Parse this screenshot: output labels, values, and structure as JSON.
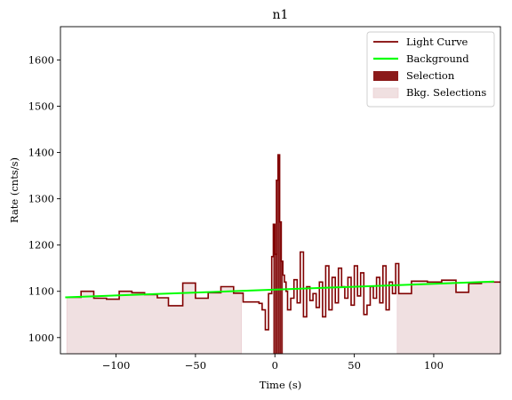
{
  "colors": {
    "light_curve": "#800000",
    "background": "#00ff00",
    "selection": "#8b1a1a",
    "bkg_selection": "#f0e0e1",
    "bkg_selection_edge": "#e8c8cc"
  },
  "chart_data": {
    "type": "line",
    "title": "n1",
    "xlabel": "Time (s)",
    "ylabel": "Rate (cnts/s)",
    "xlim": [
      -135,
      142
    ],
    "ylim": [
      965,
      1672
    ],
    "xticks": [
      -100,
      -50,
      0,
      50,
      100
    ],
    "yticks": [
      1000,
      1100,
      1200,
      1300,
      1400,
      1500,
      1600
    ],
    "xtick_labels": [
      "−100",
      "−50",
      "0",
      "50",
      "100"
    ],
    "ytick_labels": [
      "1000",
      "1100",
      "1200",
      "1300",
      "1400",
      "1500",
      "1600"
    ],
    "grid": false,
    "legend_position": "top-right",
    "legend": [
      "Light Curve",
      "Background",
      "Selection",
      "Bkg. Selections"
    ],
    "series": [
      {
        "name": "Light Curve",
        "style": "step",
        "x": [
          -131,
          -122,
          -114,
          -106,
          -98,
          -90,
          -82,
          -74,
          -67,
          -58,
          -50,
          -42,
          -34,
          -26,
          -20,
          -10,
          -8,
          -6,
          -4,
          -2,
          -1,
          0,
          1,
          2,
          3,
          4,
          5,
          6,
          7,
          8,
          10,
          12,
          14,
          16,
          18,
          20,
          22,
          24,
          26,
          28,
          30,
          32,
          34,
          36,
          38,
          40,
          42,
          44,
          46,
          48,
          50,
          52,
          54,
          56,
          58,
          60,
          62,
          64,
          66,
          68,
          70,
          72,
          74,
          76,
          78,
          86,
          96,
          105,
          114,
          122,
          130,
          142
        ],
        "y": [
          1087,
          1100,
          1085,
          1083,
          1100,
          1097,
          1093,
          1086,
          1069,
          1118,
          1085,
          1097,
          1110,
          1096,
          1077,
          1074,
          1060,
          1017,
          1095,
          1175,
          1245,
          1180,
          1340,
          1395,
          1250,
          1165,
          1135,
          1120,
          1100,
          1060,
          1085,
          1125,
          1075,
          1185,
          1045,
          1110,
          1080,
          1095,
          1065,
          1120,
          1045,
          1155,
          1060,
          1130,
          1075,
          1150,
          1110,
          1085,
          1130,
          1070,
          1155,
          1090,
          1140,
          1050,
          1070,
          1110,
          1085,
          1130,
          1075,
          1155,
          1060,
          1120,
          1095,
          1160,
          1095,
          1122,
          1120,
          1124,
          1098,
          1117,
          1120,
          1120
        ]
      },
      {
        "name": "Background",
        "style": "line",
        "x": [
          -132,
          138
        ],
        "y": [
          1087,
          1121
        ]
      }
    ],
    "selection": {
      "x_range": [
        -1,
        5
      ],
      "x": [
        -1,
        0,
        1,
        2,
        3,
        4
      ],
      "y": [
        1245,
        1180,
        1340,
        1395,
        1250,
        1165
      ]
    },
    "bkg_selections": [
      {
        "x_range": [
          -135,
          -21
        ],
        "y_edge": [
          1087,
          1100,
          1085,
          1083,
          1100,
          1097,
          1093,
          1086,
          1069,
          1118,
          1085,
          1097,
          1110,
          1096
        ]
      },
      {
        "x_range": [
          77,
          142
        ],
        "y_edge": [
          1122,
          1120,
          1124,
          1098,
          1117,
          1120
        ]
      }
    ]
  }
}
